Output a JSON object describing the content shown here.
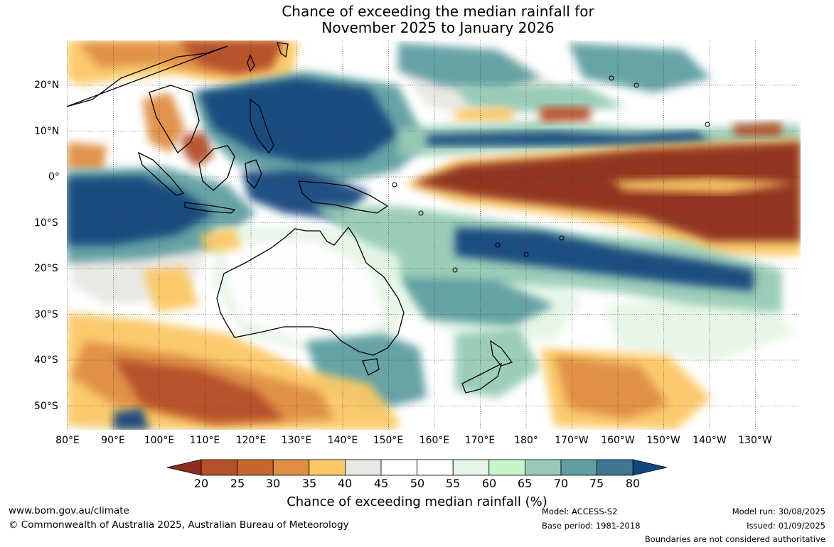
{
  "title": {
    "line1": "Chance of exceeding the median rainfall for",
    "line2": "November 2025 to January 2026"
  },
  "map": {
    "lat_labels": [
      "20°N",
      "10°N",
      "0°",
      "10°S",
      "20°S",
      "30°S",
      "40°S",
      "50°S"
    ],
    "lon_labels": [
      "80°E",
      "90°E",
      "100°E",
      "110°E",
      "120°E",
      "130°E",
      "140°E",
      "150°E",
      "160°E",
      "170°E",
      "180°",
      "170°W",
      "160°W",
      "150°W",
      "140°W",
      "130°W"
    ],
    "colors": {
      "dry_extreme": "#8c2d1d",
      "dry_strong": "#b5502b",
      "dry": "#c7662e",
      "dry_moderate": "#df8f45",
      "dry_weak": "#fbc866",
      "neutral_dry": "#e9e7e2",
      "neutral": "#ffffff",
      "wet_weak": "#e6f6e6",
      "wet": "#c7f5c9",
      "wet_moderate": "#97cbb5",
      "wet_strong": "#5f9ea1",
      "wet_very_strong": "#3e7694",
      "wet_extreme": "#12477e",
      "coastline": "#000000"
    }
  },
  "colorbar": {
    "ticks": [
      "20",
      "25",
      "30",
      "35",
      "40",
      "45",
      "50",
      "55",
      "60",
      "65",
      "70",
      "75",
      "80"
    ],
    "colors": [
      "#8c2d1d",
      "#b5502b",
      "#c7662e",
      "#df8f45",
      "#fbc866",
      "#e9e7e2",
      "#ffffff",
      "#ffffff",
      "#e6f6e6",
      "#c7f5c9",
      "#97cbb5",
      "#5f9ea1",
      "#3e7694",
      "#12477e"
    ],
    "title": "Chance of exceeding median rainfall (%)"
  },
  "footer": {
    "site": "www.bom.gov.au/climate",
    "copyright": "© Commonwealth of Australia 2025, Australian Bureau of Meteorology",
    "model": "Model: ACCESS-S2",
    "base_period": "Base period: 1981-2018",
    "model_run": "Model run: 30/08/2025",
    "issued": "Issued: 01/09/2025",
    "boundaries": "Boundaries are not considered authoritative"
  }
}
